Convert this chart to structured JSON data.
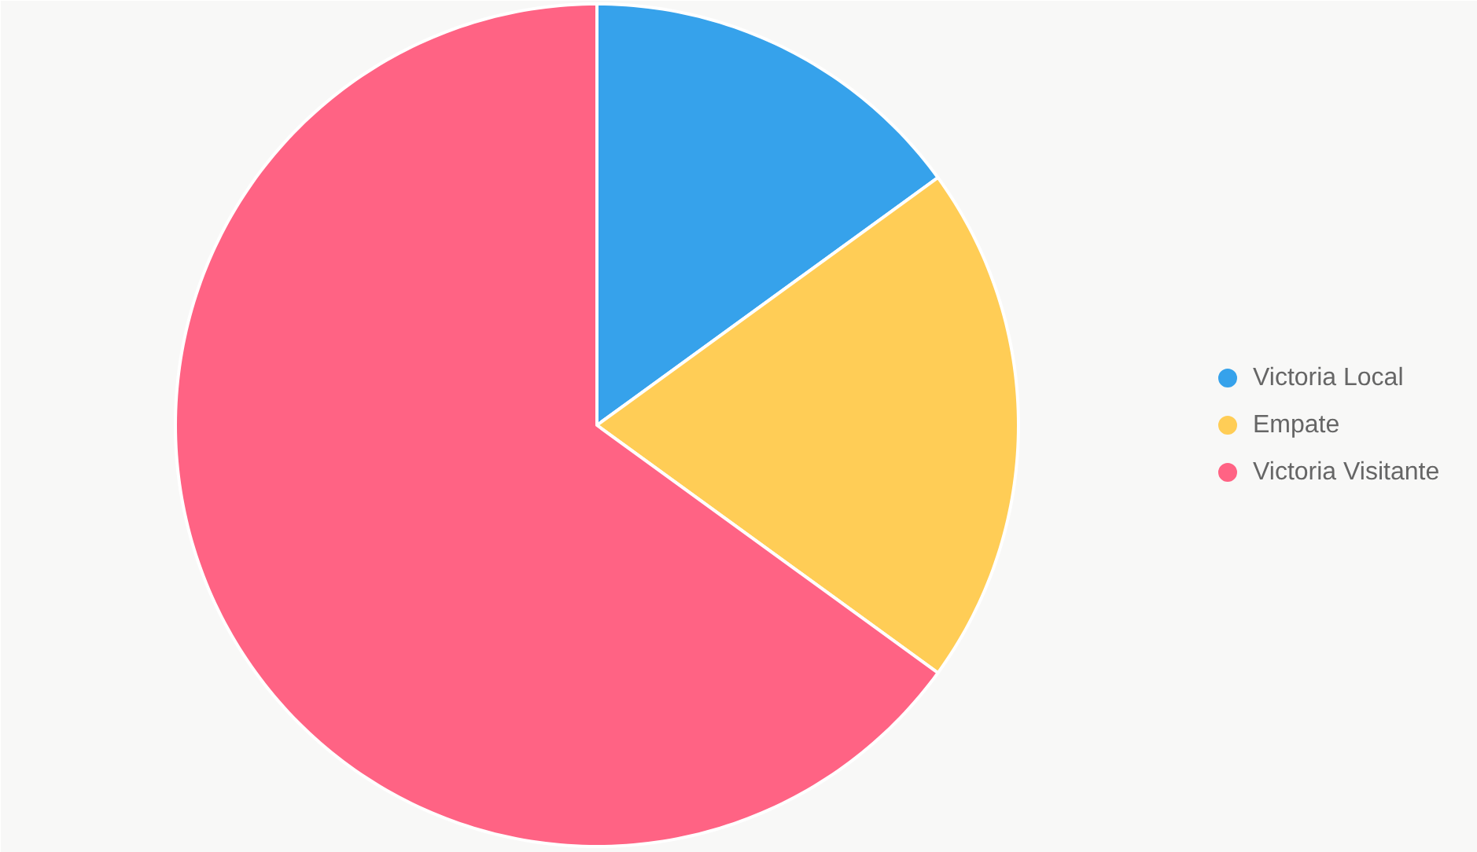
{
  "chart_data": {
    "type": "pie",
    "categories": [
      "Victoria Local",
      "Empate",
      "Victoria Visitante"
    ],
    "values": [
      15,
      20,
      65
    ],
    "colors": [
      "#36a2eb",
      "#ffcd56",
      "#ff6384"
    ],
    "legend": "right"
  }
}
